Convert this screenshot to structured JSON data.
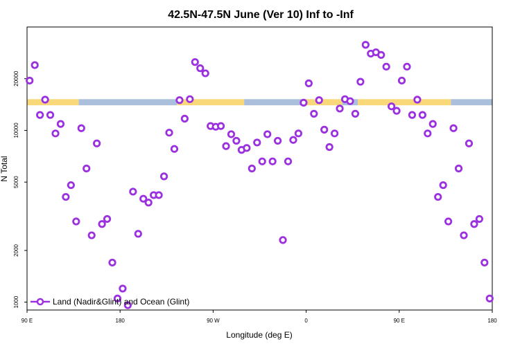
{
  "chart_data": {
    "type": "scatter",
    "title": "42.5N-47.5N June (Ver 10)   Inf to -Inf",
    "xlabel": "Longitude (deg E)",
    "ylabel": "N Total",
    "xlim": [
      90,
      540
    ],
    "ylim_log": [
      900,
      40000
    ],
    "log_y": true,
    "x_ticks": [
      {
        "value": 90,
        "label": "90 E"
      },
      {
        "value": 180,
        "label": "180"
      },
      {
        "value": 270,
        "label": "90 W"
      },
      {
        "value": 360,
        "label": "0"
      },
      {
        "value": 450,
        "label": "90 E"
      },
      {
        "value": 540,
        "label": "180"
      }
    ],
    "y_ticks": [
      {
        "value": 1000,
        "label": "1000"
      },
      {
        "value": 2000,
        "label": "2000"
      },
      {
        "value": 5000,
        "label": "5000"
      },
      {
        "value": 10000,
        "label": "10000"
      },
      {
        "value": 20000,
        "label": "20000"
      }
    ],
    "surface_strip": {
      "y_value_bottom": 14000,
      "y_value_top": 15200,
      "segments": [
        {
          "x0": 90,
          "x1": 140,
          "type": "land"
        },
        {
          "x0": 140,
          "x1": 235,
          "type": "ocean"
        },
        {
          "x0": 235,
          "x1": 300,
          "type": "land"
        },
        {
          "x0": 300,
          "x1": 355,
          "type": "ocean"
        },
        {
          "x0": 355,
          "x1": 395,
          "type": "land"
        },
        {
          "x0": 395,
          "x1": 410,
          "type": "ocean"
        },
        {
          "x0": 410,
          "x1": 500,
          "type": "land"
        },
        {
          "x0": 500,
          "x1": 540,
          "type": "ocean"
        }
      ]
    },
    "series": [
      {
        "name": "Land (Nadir&Glint) and Ocean (Glint)",
        "x": [
          92.5,
          97.5,
          102.5,
          107.5,
          112.5,
          117.5,
          122.5,
          127.5,
          132.5,
          137.5,
          142.5,
          147.5,
          152.5,
          157.5,
          162.5,
          167.5,
          172.5,
          177.5,
          182.5,
          187.5,
          192.5,
          197.5,
          202.5,
          207.5,
          212.5,
          217.5,
          222.5,
          227.5,
          232.5,
          237.5,
          242.5,
          247.5,
          252.5,
          257.5,
          262.5,
          267.5,
          272.5,
          277.5,
          282.5,
          287.5,
          292.5,
          297.5,
          302.5,
          307.5,
          312.5,
          317.5,
          322.5,
          327.5,
          332.5,
          337.5,
          342.5,
          347.5,
          352.5,
          357.5,
          362.5,
          367.5,
          372.5,
          377.5,
          382.5,
          387.5,
          392.5,
          397.5,
          402.5,
          407.5,
          412.5,
          417.5,
          422.5,
          427.5,
          432.5,
          437.5,
          442.5,
          447.5,
          452.5,
          457.5,
          462.5,
          467.5,
          472.5,
          477.5,
          482.5,
          487.5,
          492.5,
          497.5,
          502.5,
          507.5,
          512.5,
          517.5,
          522.5,
          527.5,
          532.5,
          537.5
        ],
        "y": [
          19500,
          24000,
          12300,
          15100,
          12300,
          9600,
          10900,
          4100,
          4800,
          2950,
          10300,
          6000,
          2450,
          8400,
          2850,
          3050,
          1700,
          1050,
          1200,
          960,
          4400,
          2500,
          4000,
          3800,
          4200,
          4200,
          5400,
          9700,
          7800,
          15000,
          11700,
          15200,
          25000,
          23000,
          21500,
          10600,
          10500,
          10600,
          8100,
          9500,
          8700,
          7700,
          7900,
          6000,
          8500,
          6600,
          9500,
          6600,
          8700,
          2300,
          6600,
          8800,
          9600,
          14500,
          18800,
          12500,
          15000,
          10100,
          8000,
          9600,
          13400,
          15200,
          14800,
          12500,
          19200,
          31500,
          28000,
          28500,
          27500,
          23500,
          13800,
          13000,
          19500,
          23500,
          12300,
          15100,
          12300,
          9600,
          10900,
          4100,
          4800,
          2950,
          10300,
          6000,
          2450,
          8400,
          2850,
          3050,
          1700,
          1050
        ]
      }
    ],
    "legend": {
      "placement": "bottom-left",
      "label": "Land (Nadir&Glint) and Ocean (Glint)"
    },
    "colors": {
      "marker": "#9b30e0",
      "land_strip": "#f9d87a",
      "ocean_strip": "#a9bfdc",
      "frame": "#000000"
    },
    "grid": false
  }
}
